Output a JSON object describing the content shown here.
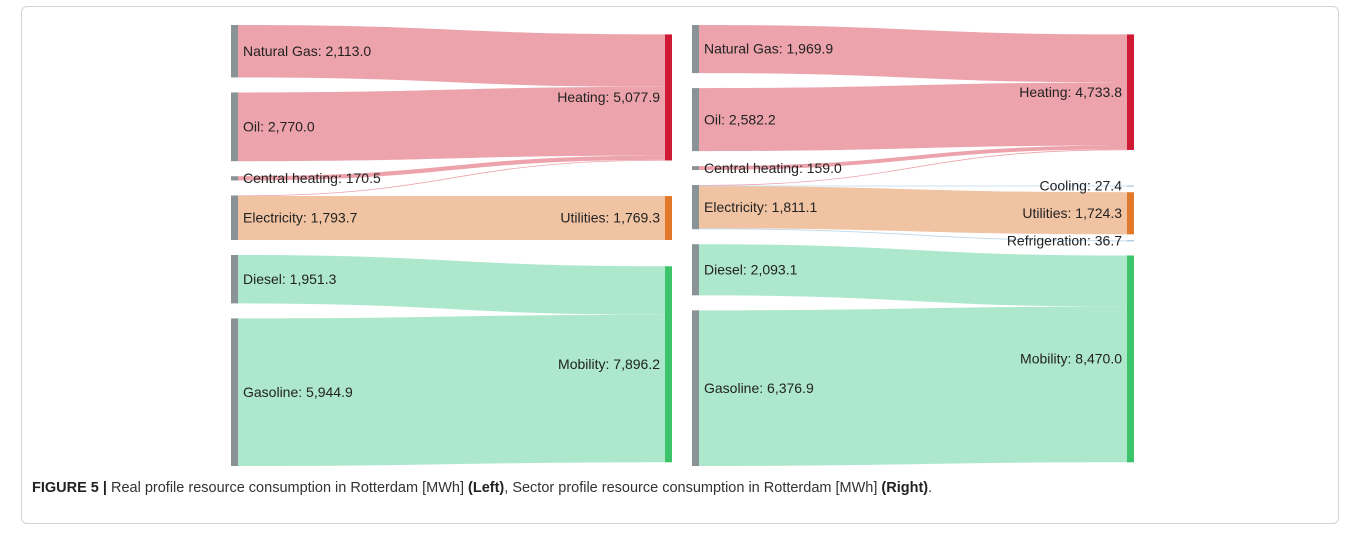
{
  "chart_data": [
    {
      "type": "sankey",
      "nodes": [
        {
          "label": "Natural Gas: 2,113.0",
          "value": 2113.0,
          "color": "#8a9497"
        },
        {
          "label": "Oil: 2,770.0",
          "value": 2770.0,
          "color": "#8a9497"
        },
        {
          "label": "Central heating: 170.5",
          "value": 170.5,
          "color": "#8a9497"
        },
        {
          "label": "Electricity: 1,793.7",
          "value": 1793.7,
          "color": "#8a9497"
        },
        {
          "label": "Diesel: 1,951.3",
          "value": 1951.3,
          "color": "#8a9497"
        },
        {
          "label": "Gasoline: 5,944.9",
          "value": 5944.9,
          "color": "#8a9497"
        },
        {
          "label": "Heating: 5,077.9",
          "value": 5077.9,
          "color": "#cf1a34",
          "link_color": "#eb9ea7"
        },
        {
          "label": "Utilities: 1,769.3",
          "value": 1769.3,
          "color": "#e2782a",
          "link_color": "#efc19e"
        },
        {
          "label": "Mobility: 7,896.2",
          "value": 7896.2,
          "color": "#3cc46b",
          "link_color": "#a9e7c9"
        }
      ],
      "links": [
        {
          "source": 0,
          "target": 6,
          "value": 2113.0
        },
        {
          "source": 1,
          "target": 6,
          "value": 2770.0
        },
        {
          "source": 2,
          "target": 6,
          "value": 170.5
        },
        {
          "source": 3,
          "target": 6,
          "value": 24.4
        },
        {
          "source": 3,
          "target": 7,
          "value": 1769.3
        },
        {
          "source": 4,
          "target": 8,
          "value": 1951.3
        },
        {
          "source": 5,
          "target": 8,
          "value": 5944.9
        }
      ]
    },
    {
      "type": "sankey",
      "nodes": [
        {
          "label": "Natural Gas: 1,969.9",
          "value": 1969.9,
          "color": "#8a9497"
        },
        {
          "label": "Oil: 2,582.2",
          "value": 2582.2,
          "color": "#8a9497"
        },
        {
          "label": "Central heating: 159.0",
          "value": 159.0,
          "color": "#8a9497"
        },
        {
          "label": "Electricity: 1,811.1",
          "value": 1811.1,
          "color": "#8a9497"
        },
        {
          "label": "Diesel: 2,093.1",
          "value": 2093.1,
          "color": "#8a9497"
        },
        {
          "label": "Gasoline: 6,376.9",
          "value": 6376.9,
          "color": "#8a9497"
        },
        {
          "label": "Heating: 4,733.8",
          "value": 4733.8,
          "color": "#cf1a34",
          "link_color": "#eb9ea7"
        },
        {
          "label": "Cooling: 27.4",
          "value": 27.4,
          "color": "#8fb8d8",
          "link_color": "#b9d5ea"
        },
        {
          "label": "Utilities: 1,724.3",
          "value": 1724.3,
          "color": "#e2782a",
          "link_color": "#efc19e"
        },
        {
          "label": "Refrigeration: 36.7",
          "value": 36.7,
          "color": "#8fb8d8",
          "link_color": "#b9d5ea"
        },
        {
          "label": "Mobility: 8,470.0",
          "value": 8470.0,
          "color": "#3cc46b",
          "link_color": "#a9e7c9"
        }
      ],
      "links": [
        {
          "source": 0,
          "target": 6,
          "value": 1969.9
        },
        {
          "source": 1,
          "target": 6,
          "value": 2582.2
        },
        {
          "source": 2,
          "target": 6,
          "value": 159.0
        },
        {
          "source": 3,
          "target": 6,
          "value": 22.7
        },
        {
          "source": 3,
          "target": 7,
          "value": 27.4
        },
        {
          "source": 3,
          "target": 8,
          "value": 1724.3
        },
        {
          "source": 3,
          "target": 9,
          "value": 36.7
        },
        {
          "source": 4,
          "target": 10,
          "value": 2093.1
        },
        {
          "source": 5,
          "target": 10,
          "value": 6376.9
        }
      ]
    }
  ],
  "caption": [
    {
      "text": "FIGURE 5 |",
      "bold": true
    },
    {
      "text": " Real profile resource consumption in Rotterdam [MWh] ",
      "bold": false
    },
    {
      "text": "(Left)",
      "bold": true
    },
    {
      "text": ", Sector profile resource consumption in Rotterdam [MWh] ",
      "bold": false
    },
    {
      "text": "(Right)",
      "bold": true
    },
    {
      "text": ".",
      "bold": false
    }
  ]
}
